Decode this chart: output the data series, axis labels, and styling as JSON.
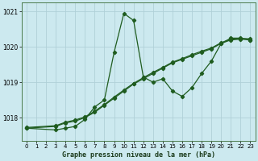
{
  "xlabel": "Graphe pression niveau de la mer (hPa)",
  "bg_color": "#cce9ef",
  "grid_color": "#b0d0d8",
  "line_color": "#1f5c1f",
  "xlim": [
    -0.5,
    23.5
  ],
  "ylim": [
    1017.35,
    1021.25
  ],
  "yticks": [
    1018,
    1019,
    1020,
    1021
  ],
  "xticks": [
    0,
    1,
    2,
    3,
    4,
    5,
    6,
    7,
    8,
    9,
    10,
    11,
    12,
    13,
    14,
    15,
    16,
    17,
    18,
    19,
    20,
    21,
    22,
    23
  ],
  "series_straight1": {
    "x": [
      0,
      3,
      4,
      5,
      6,
      7,
      8,
      9,
      10,
      11,
      12,
      13,
      14,
      15,
      16,
      17,
      18,
      19,
      20,
      21,
      22,
      23
    ],
    "y": [
      1017.7,
      1017.75,
      1017.85,
      1017.9,
      1018.0,
      1018.15,
      1018.35,
      1018.55,
      1018.75,
      1018.95,
      1019.1,
      1019.25,
      1019.4,
      1019.55,
      1019.65,
      1019.75,
      1019.85,
      1019.95,
      1020.1,
      1020.2,
      1020.22,
      1020.2
    ]
  },
  "series_straight2": {
    "x": [
      0,
      3,
      4,
      5,
      6,
      7,
      8,
      9,
      10,
      11,
      12,
      13,
      14,
      15,
      16,
      17,
      18,
      19,
      20,
      21,
      22,
      23
    ],
    "y": [
      1017.72,
      1017.77,
      1017.87,
      1017.93,
      1018.02,
      1018.18,
      1018.37,
      1018.58,
      1018.78,
      1018.97,
      1019.13,
      1019.28,
      1019.42,
      1019.57,
      1019.67,
      1019.78,
      1019.88,
      1019.97,
      1020.12,
      1020.22,
      1020.24,
      1020.23
    ]
  },
  "series_jagged": {
    "x": [
      0,
      3,
      4,
      5,
      6,
      7,
      8,
      9,
      10,
      11,
      12,
      13,
      14,
      15,
      16,
      17,
      18,
      19,
      20,
      21,
      22,
      23
    ],
    "y": [
      1017.7,
      1017.65,
      1017.7,
      1017.75,
      1017.95,
      1018.3,
      1018.5,
      1019.85,
      1020.95,
      1020.75,
      1019.15,
      1019.0,
      1019.1,
      1018.75,
      1018.6,
      1018.85,
      1019.25,
      1019.6,
      1020.1,
      1020.25,
      1020.25,
      1020.2
    ]
  }
}
